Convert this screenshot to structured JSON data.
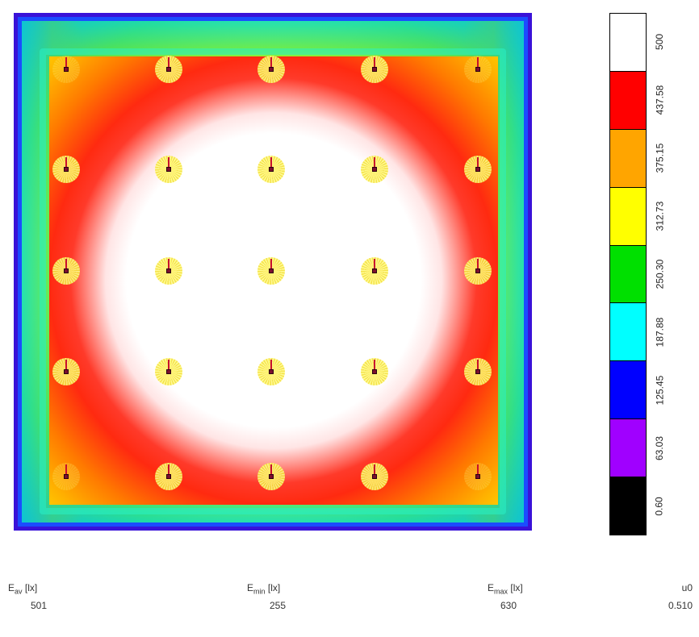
{
  "scale": {
    "bands": [
      {
        "label": "500",
        "color": "#ffffff"
      },
      {
        "label": "437.58",
        "color": "#ff0000"
      },
      {
        "label": "375.15",
        "color": "#ffa500"
      },
      {
        "label": "312.73",
        "color": "#ffff00"
      },
      {
        "label": "250.30",
        "color": "#00e000"
      },
      {
        "label": "187.88",
        "color": "#00ffff"
      },
      {
        "label": "125.45",
        "color": "#0000ff"
      },
      {
        "label": "63.03",
        "color": "#a000ff"
      },
      {
        "label": "0.60",
        "color": "#000000"
      }
    ]
  },
  "stats": {
    "eav": {
      "label_main": "E",
      "label_sub": "av",
      "unit": "[lx]",
      "value": "501"
    },
    "emin": {
      "label_main": "E",
      "label_sub": "min",
      "unit": "[lx]",
      "value": "255"
    },
    "emax": {
      "label_main": "E",
      "label_sub": "max",
      "unit": "[lx]",
      "value": "630"
    },
    "u0": {
      "label_main": "u0",
      "value": "0.510"
    }
  }
}
